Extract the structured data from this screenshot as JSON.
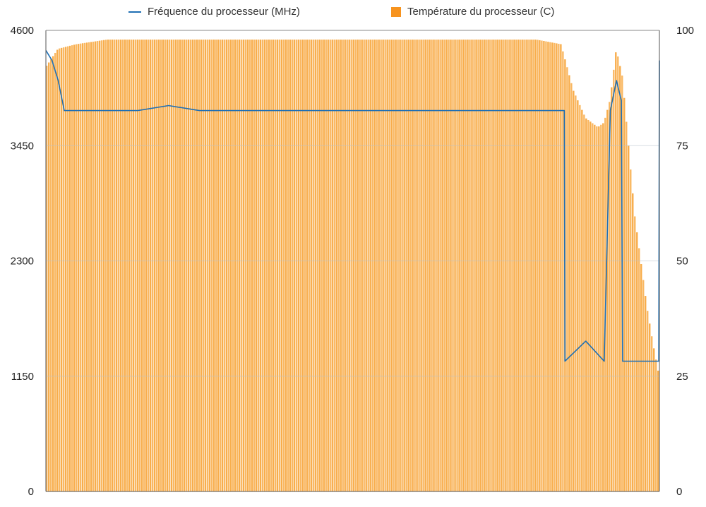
{
  "chart_data": {
    "type": "line",
    "title": "",
    "series": [
      {
        "name": "Fréquence du processeur (MHz)",
        "axis": "left",
        "style": "line",
        "color": "#1f6fb4",
        "points": [
          [
            0,
            4400
          ],
          [
            1,
            4300
          ],
          [
            2,
            4100
          ],
          [
            3,
            3800
          ],
          [
            4,
            3800
          ],
          [
            5,
            3800
          ],
          [
            10,
            3800
          ],
          [
            15,
            3800
          ],
          [
            20,
            3850
          ],
          [
            25,
            3800
          ],
          [
            30,
            3800
          ],
          [
            40,
            3800
          ],
          [
            50,
            3800
          ],
          [
            60,
            3800
          ],
          [
            70,
            3800
          ],
          [
            80,
            3800
          ],
          [
            84.5,
            3800
          ],
          [
            84.6,
            1300
          ],
          [
            88,
            1500
          ],
          [
            91,
            1300
          ],
          [
            92,
            3800
          ],
          [
            93,
            4100
          ],
          [
            93.8,
            3900
          ],
          [
            94,
            1300
          ],
          [
            98,
            1300
          ],
          [
            99.9,
            1300
          ],
          [
            100,
            4300
          ]
        ]
      },
      {
        "name": "Température du processeur (C)",
        "axis": "right",
        "style": "bars",
        "color": "#f7a437",
        "points": [
          [
            0,
            92
          ],
          [
            2,
            96
          ],
          [
            5,
            97
          ],
          [
            10,
            98
          ],
          [
            20,
            98
          ],
          [
            30,
            98
          ],
          [
            40,
            98
          ],
          [
            50,
            98
          ],
          [
            60,
            98
          ],
          [
            70,
            98
          ],
          [
            80,
            98
          ],
          [
            84,
            97
          ],
          [
            85,
            92
          ],
          [
            86,
            87
          ],
          [
            88,
            81
          ],
          [
            90,
            79
          ],
          [
            91,
            80
          ],
          [
            92,
            85
          ],
          [
            93,
            96
          ],
          [
            94,
            90
          ],
          [
            95,
            75
          ],
          [
            96,
            60
          ],
          [
            97,
            50
          ],
          [
            98,
            40
          ],
          [
            99,
            32
          ],
          [
            100,
            25
          ]
        ]
      }
    ],
    "y_left": {
      "ticks": [
        "0",
        "1150",
        "2300",
        "3450",
        "4600"
      ],
      "ylim": [
        0,
        4600
      ]
    },
    "y_right": {
      "ticks": [
        "0",
        "25",
        "50",
        "75",
        "100"
      ],
      "ylim": [
        0,
        100
      ]
    },
    "x": {
      "ticks": [],
      "xlim": [
        0,
        100
      ]
    },
    "grid": true,
    "legend_position": "top"
  }
}
